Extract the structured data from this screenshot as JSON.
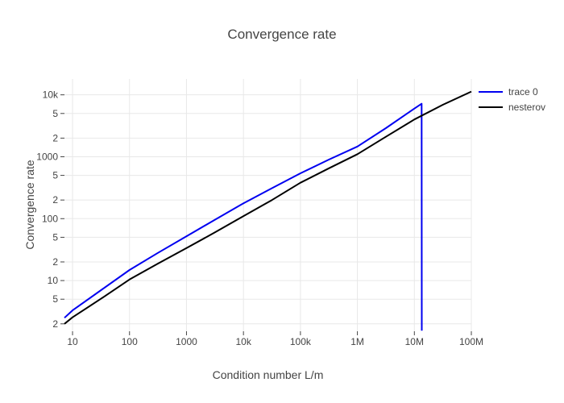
{
  "title": "Convergence rate",
  "colors": {
    "background": "#ffffff",
    "text": "#444444",
    "grid": "#e8e8e8",
    "tick": "#444444",
    "trace0": "#0000f0",
    "nesterov": "#000000"
  },
  "chart_data": {
    "type": "line",
    "title": "Convergence rate",
    "xlabel": "Condition number L/m",
    "ylabel": "Convergence rate",
    "x_scale": "log",
    "y_scale": "log",
    "x_range_log10": [
      0.858,
      8.0
    ],
    "y_range_log10": [
      0.181,
      4.256
    ],
    "grid": true,
    "legend_position": "top-right-outside",
    "x_ticks": [
      {
        "v": 10,
        "label": "10"
      },
      {
        "v": 100,
        "label": "100"
      },
      {
        "v": 1000,
        "label": "1000"
      },
      {
        "v": 10000,
        "label": "10k"
      },
      {
        "v": 100000,
        "label": "100k"
      },
      {
        "v": 1000000,
        "label": "1M"
      },
      {
        "v": 10000000,
        "label": "10M"
      },
      {
        "v": 100000000,
        "label": "100M"
      }
    ],
    "y_ticks": [
      {
        "v": 2,
        "label": "2"
      },
      {
        "v": 5,
        "label": "5"
      },
      {
        "v": 10,
        "label": "10"
      },
      {
        "v": 20,
        "label": "2"
      },
      {
        "v": 50,
        "label": "5"
      },
      {
        "v": 100,
        "label": "100"
      },
      {
        "v": 200,
        "label": "2"
      },
      {
        "v": 500,
        "label": "5"
      },
      {
        "v": 1000,
        "label": "1000"
      },
      {
        "v": 2000,
        "label": "2"
      },
      {
        "v": 5000,
        "label": "5"
      },
      {
        "v": 10000,
        "label": "10k"
      }
    ],
    "series": [
      {
        "name": "trace 0",
        "color": "#0000f0",
        "width": 2,
        "x": [
          7.2,
          10,
          31.6,
          100,
          316,
          1000,
          3162,
          10000,
          31600,
          100000,
          316000,
          1000000,
          3160000,
          10000000,
          13400000,
          13500000
        ],
        "y": [
          2.5,
          3.3,
          7.0,
          14.8,
          28,
          52,
          96,
          177,
          310,
          540,
          900,
          1460,
          2900,
          6000,
          7190,
          1.55
        ]
      },
      {
        "name": "nesterov",
        "color": "#000000",
        "width": 2,
        "x": [
          7.2,
          10,
          31.6,
          100,
          316,
          1000,
          3162,
          10000,
          31600,
          100000,
          316000,
          1000000,
          3160000,
          10000000,
          31600000,
          100000000
        ],
        "y": [
          2.0,
          2.55,
          5.1,
          10.4,
          18.8,
          33.5,
          60,
          110,
          200,
          380,
          650,
          1100,
          2100,
          4000,
          6900,
          11300
        ]
      }
    ]
  }
}
